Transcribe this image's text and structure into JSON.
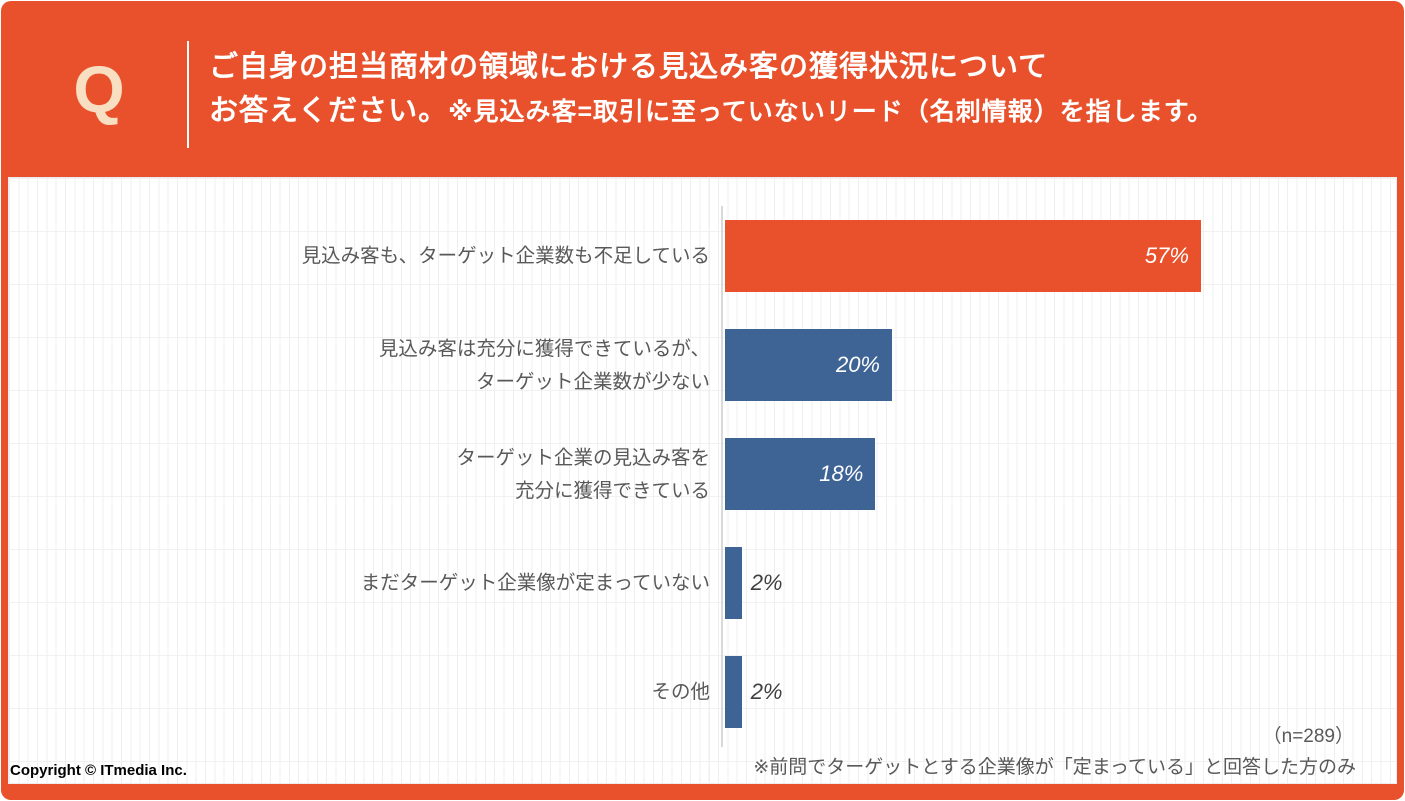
{
  "header": {
    "q_label": "Q",
    "title_line1": "ご自身の担当商材の領域における見込み客の獲得状況について",
    "title_line2_main": "お答えください。",
    "title_line2_note": "※見込み客=取引に至っていないリード（名刺情報）を指します。"
  },
  "chart_data": {
    "type": "bar",
    "orientation": "horizontal",
    "categories": [
      [
        "見込み客も、ターゲット企業数も不足している"
      ],
      [
        "見込み客は充分に獲得できているが、",
        "ターゲット企業数が少ない"
      ],
      [
        "ターゲット企業の見込み客を",
        "充分に獲得できている"
      ],
      [
        "まだターゲット企業像が定まっていない"
      ],
      [
        "その他"
      ]
    ],
    "values": [
      57,
      20,
      18,
      2,
      2
    ],
    "value_labels": [
      "57%",
      "20%",
      "18%",
      "2%",
      "2%"
    ],
    "bar_colors": [
      "#E8512B",
      "#3E6496",
      "#3E6496",
      "#3E6496",
      "#3E6496"
    ],
    "xlim": [
      0,
      60
    ],
    "grid": "faint background grid",
    "sample_size_note": "（n=289）",
    "footnote": "※前問でターゲットとする企業像が「定まっている」と回答した方のみ"
  },
  "footer": {
    "copyright": "Copyright © ITmedia Inc."
  },
  "colors": {
    "accent_orange": "#E8512B",
    "bar_blue": "#3E6496",
    "q_mark_cream": "#F9DFC2",
    "label_gray": "#595959",
    "axis_gray": "#D9D9D9"
  }
}
